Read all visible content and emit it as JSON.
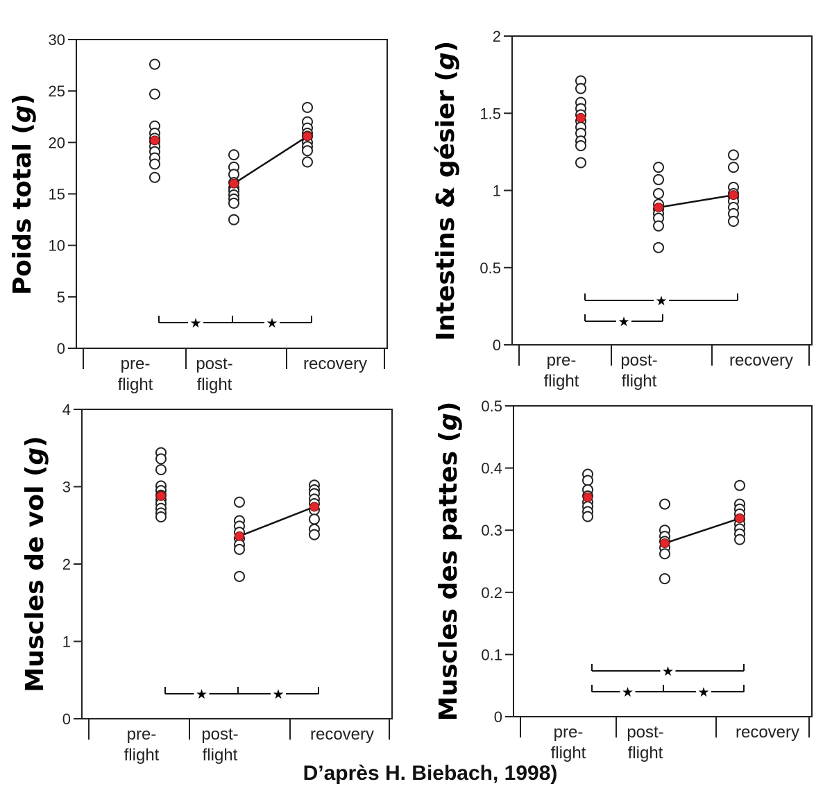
{
  "credit": "D’après H. Biebach, 1998)",
  "colors": {
    "individual": "#222222",
    "mean": "#e3262b",
    "axis": "#222222"
  },
  "chart_data": [
    {
      "type": "scatter",
      "ylabel": "Poids total (g)",
      "ylabel_parts": [
        "Poids total (",
        "g",
        ")"
      ],
      "ylim": [
        0,
        30
      ],
      "yticks": [
        0,
        5,
        10,
        15,
        20,
        25,
        30
      ],
      "categories": [
        [
          "pre-",
          "flight"
        ],
        [
          "post-",
          "flight"
        ],
        [
          "recovery"
        ]
      ],
      "individuals": [
        [
          27.6,
          24.7,
          21.6,
          20.9,
          20.4,
          20.1,
          19.6,
          19.1,
          18.5,
          17.9,
          16.6
        ],
        [
          18.8,
          17.6,
          16.9,
          16.1,
          15.6,
          15.3,
          14.9,
          14.5,
          14.1,
          12.5
        ],
        [
          23.4,
          22.0,
          21.4,
          20.9,
          20.6,
          20.0,
          19.6,
          19.2,
          18.1
        ]
      ],
      "means": [
        20.2,
        16.0,
        20.6
      ],
      "line_between": [
        1,
        2
      ],
      "significance": [
        {
          "from": 0,
          "to": 2,
          "mid": 1,
          "stars": [
            "★",
            "★"
          ]
        }
      ]
    },
    {
      "type": "scatter",
      "ylabel": "Intestins & gésier (g)",
      "ylabel_parts": [
        "Intestins & gésier (",
        "g",
        ")"
      ],
      "ylim": [
        0,
        2
      ],
      "yticks": [
        0,
        0.5,
        1,
        1.5,
        2
      ],
      "ytick_labels": [
        "0",
        "0.5",
        "1",
        "1.5",
        "2"
      ],
      "categories": [
        [
          "pre-",
          "flight"
        ],
        [
          "post-",
          "flight"
        ],
        [
          "recovery"
        ]
      ],
      "individuals": [
        [
          1.71,
          1.66,
          1.57,
          1.53,
          1.49,
          1.45,
          1.41,
          1.37,
          1.32,
          1.29,
          1.18
        ],
        [
          1.15,
          1.07,
          0.98,
          0.91,
          0.88,
          0.85,
          0.82,
          0.77,
          0.63
        ],
        [
          1.23,
          1.15,
          1.02,
          0.98,
          0.96,
          0.93,
          0.89,
          0.85,
          0.8
        ]
      ],
      "means": [
        1.47,
        0.89,
        0.97
      ],
      "line_between": [
        1,
        2
      ],
      "significance": [
        {
          "from": 0,
          "to": 2,
          "stars": [
            "★"
          ]
        },
        {
          "from": 0,
          "to": 1,
          "stars": [
            "★"
          ]
        }
      ]
    },
    {
      "type": "scatter",
      "ylabel": "Muscles de vol (g)",
      "ylabel_parts": [
        "Muscles de vol (",
        "g",
        ")"
      ],
      "ylim": [
        0,
        4
      ],
      "yticks": [
        0,
        1,
        2,
        3,
        4
      ],
      "categories": [
        [
          "pre-",
          "flight"
        ],
        [
          "post-",
          "flight"
        ],
        [
          "recovery"
        ]
      ],
      "individuals": [
        [
          3.44,
          3.36,
          3.22,
          3.01,
          2.95,
          2.89,
          2.83,
          2.78,
          2.72,
          2.66,
          2.61
        ],
        [
          2.8,
          2.56,
          2.49,
          2.41,
          2.33,
          2.25,
          2.19,
          1.84
        ],
        [
          3.02,
          2.96,
          2.91,
          2.84,
          2.78,
          2.7,
          2.58,
          2.45,
          2.38
        ]
      ],
      "means": [
        2.88,
        2.36,
        2.74
      ],
      "line_between": [
        1,
        2
      ],
      "significance": [
        {
          "from": 0,
          "to": 2,
          "mid": 1,
          "stars": [
            "★",
            "★"
          ]
        }
      ]
    },
    {
      "type": "scatter",
      "ylabel": "Muscles des pattes (g)",
      "ylabel_parts": [
        "Muscles des pattes (",
        "g",
        ")"
      ],
      "ylim": [
        0,
        0.5
      ],
      "yticks": [
        0,
        0.1,
        0.2,
        0.3,
        0.4,
        0.5
      ],
      "categories": [
        [
          "pre-",
          "flight"
        ],
        [
          "post-",
          "flight"
        ],
        [
          "recovery"
        ]
      ],
      "individuals": [
        [
          0.39,
          0.38,
          0.365,
          0.355,
          0.345,
          0.338,
          0.33,
          0.322
        ],
        [
          0.342,
          0.3,
          0.29,
          0.282,
          0.272,
          0.262,
          0.222
        ],
        [
          0.372,
          0.342,
          0.334,
          0.326,
          0.318,
          0.31,
          0.302,
          0.294,
          0.285
        ]
      ],
      "means": [
        0.353,
        0.279,
        0.319
      ],
      "line_between": [
        1,
        2
      ],
      "significance": [
        {
          "from": 0,
          "to": 2,
          "stars": [
            "★"
          ]
        },
        {
          "from": 0,
          "to": 2,
          "mid": 1,
          "stars": [
            "★",
            "★"
          ]
        }
      ]
    }
  ]
}
